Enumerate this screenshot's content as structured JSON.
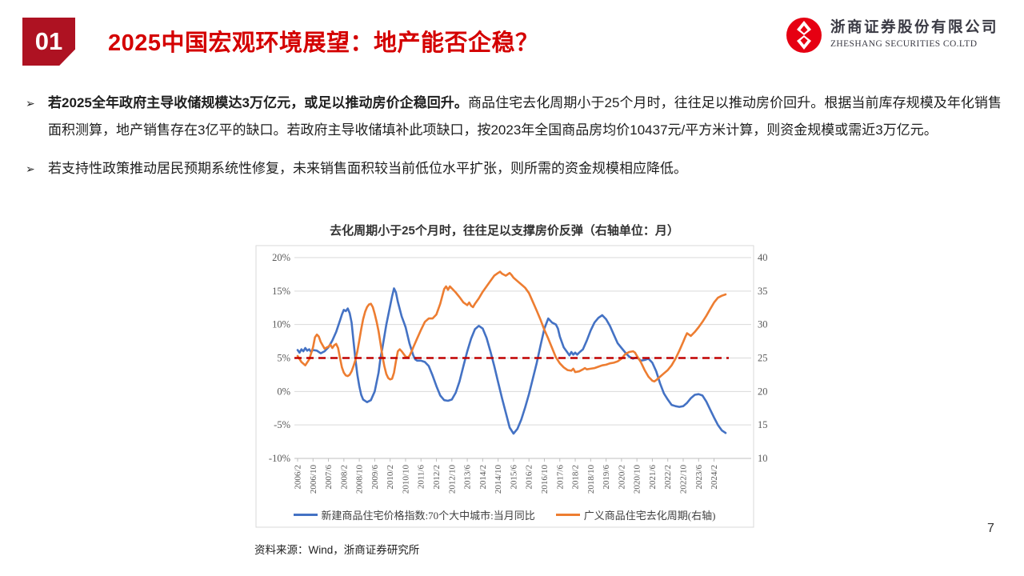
{
  "slide": {
    "section_number": "01",
    "title": "2025中国宏观环境展望：地产能否企稳？",
    "source": "资料来源：Wind，浙商证券研究所",
    "page_number": "7"
  },
  "logo": {
    "company_cn": "浙商证券股份有限公司",
    "company_en": "ZHESHANG SECURITIES CO.LTD"
  },
  "bullets": [
    {
      "marker": "➢",
      "bold": "若2025全年政府主导收储规模达3万亿元，或足以推动房价企稳回升。",
      "text": "商品住宅去化周期小于25个月时，往往足以推动房价回升。根据当前库存规模及年化销售面积测算，地产销售存在3亿平的缺口。若政府主导收储填补此项缺口，按2023年全国商品房均价10437元/平方米计算，则资金规模或需近3万亿元。"
    },
    {
      "marker": "➢",
      "bold": "",
      "text": "若支持性政策推动居民预期系统性修复，未来销售面积较当前低位水平扩张，则所需的资金规模相应降低。"
    }
  ],
  "chart_data": {
    "type": "line",
    "title": "去化周期小于25个月时，往往足以支撑房价反弹（右轴单位：月）",
    "x_unit": "months since 2006/2, labels every 8 months",
    "x_tick_labels": [
      "2006/2",
      "2006/10",
      "2007/6",
      "2008/2",
      "2008/10",
      "2009/6",
      "2010/2",
      "2010/10",
      "2011/6",
      "2012/2",
      "2012/10",
      "2013/6",
      "2014/2",
      "2014/10",
      "2015/6",
      "2016/2",
      "2016/10",
      "2017/6",
      "2018/2",
      "2018/10",
      "2019/6",
      "2020/2",
      "2020/10",
      "2021/6",
      "2022/2",
      "2022/10",
      "2023/6",
      "2024/2"
    ],
    "x_tick_interval_months": 8,
    "left_axis": {
      "ticks": [
        "20%",
        "15%",
        "10%",
        "5%",
        "0%",
        "-5%",
        "-10%"
      ],
      "max": 20,
      "min": -10
    },
    "right_axis": {
      "ticks": [
        "40",
        "35",
        "30",
        "25",
        "20",
        "15",
        "10"
      ],
      "max": 40,
      "min": 10
    },
    "grid_color": "#D9D9D9",
    "axis_color": "#BFBFBF",
    "tick_label_color": "#595959",
    "reference_line": {
      "axis": "right",
      "value": 25,
      "color": "#C00000",
      "style": "dashed"
    },
    "series": [
      {
        "name": "新建商品住宅价格指数:70个大中城市:当月同比",
        "axis": "left",
        "color": "#4472C4",
        "points": [
          [
            0,
            6.2
          ],
          [
            1,
            5.8
          ],
          [
            2,
            6.3
          ],
          [
            3,
            6.0
          ],
          [
            4,
            6.5
          ],
          [
            5,
            6.1
          ],
          [
            6,
            6.3
          ],
          [
            7,
            5.9
          ],
          [
            8,
            6.2
          ],
          [
            10,
            6.1
          ],
          [
            12,
            5.7
          ],
          [
            14,
            6.0
          ],
          [
            16,
            6.6
          ],
          [
            18,
            7.6
          ],
          [
            20,
            8.9
          ],
          [
            22,
            10.6
          ],
          [
            23,
            11.5
          ],
          [
            24,
            12.2
          ],
          [
            25,
            12.0
          ],
          [
            26,
            12.4
          ],
          [
            27,
            11.7
          ],
          [
            28,
            10.3
          ],
          [
            29,
            7.5
          ],
          [
            30,
            4.8
          ],
          [
            31,
            2.5
          ],
          [
            32,
            0.8
          ],
          [
            33,
            -0.5
          ],
          [
            34,
            -1.2
          ],
          [
            36,
            -1.6
          ],
          [
            38,
            -1.3
          ],
          [
            40,
            0.0
          ],
          [
            42,
            2.8
          ],
          [
            43,
            5.0
          ],
          [
            44,
            6.5
          ],
          [
            46,
            10.0
          ],
          [
            48,
            12.8
          ],
          [
            49,
            14.2
          ],
          [
            50,
            15.4
          ],
          [
            51,
            14.8
          ],
          [
            52,
            13.4
          ],
          [
            54,
            11.2
          ],
          [
            55,
            10.4
          ],
          [
            56,
            9.6
          ],
          [
            58,
            7.2
          ],
          [
            60,
            5.4
          ],
          [
            61,
            4.8
          ],
          [
            62,
            4.6
          ],
          [
            64,
            4.6
          ],
          [
            66,
            4.4
          ],
          [
            68,
            3.8
          ],
          [
            70,
            2.4
          ],
          [
            72,
            0.8
          ],
          [
            74,
            -0.6
          ],
          [
            76,
            -1.3
          ],
          [
            78,
            -1.4
          ],
          [
            80,
            -1.2
          ],
          [
            82,
            -0.2
          ],
          [
            84,
            1.5
          ],
          [
            86,
            3.8
          ],
          [
            88,
            6.0
          ],
          [
            90,
            7.9
          ],
          [
            92,
            9.3
          ],
          [
            94,
            9.8
          ],
          [
            96,
            9.4
          ],
          [
            98,
            8.0
          ],
          [
            100,
            6.0
          ],
          [
            102,
            3.8
          ],
          [
            104,
            1.4
          ],
          [
            106,
            -1.0
          ],
          [
            108,
            -3.2
          ],
          [
            110,
            -5.4
          ],
          [
            112,
            -6.3
          ],
          [
            114,
            -5.6
          ],
          [
            116,
            -4.2
          ],
          [
            118,
            -2.4
          ],
          [
            120,
            -0.4
          ],
          [
            122,
            1.9
          ],
          [
            124,
            4.2
          ],
          [
            126,
            6.9
          ],
          [
            128,
            9.4
          ],
          [
            130,
            10.9
          ],
          [
            131,
            10.6
          ],
          [
            132,
            10.3
          ],
          [
            134,
            10.0
          ],
          [
            135,
            9.4
          ],
          [
            136,
            8.2
          ],
          [
            138,
            6.6
          ],
          [
            140,
            5.8
          ],
          [
            141,
            5.4
          ],
          [
            142,
            5.9
          ],
          [
            143,
            5.5
          ],
          [
            144,
            5.8
          ],
          [
            145,
            5.5
          ],
          [
            146,
            5.8
          ],
          [
            148,
            6.3
          ],
          [
            150,
            7.6
          ],
          [
            152,
            9.1
          ],
          [
            154,
            10.3
          ],
          [
            156,
            11.0
          ],
          [
            158,
            11.4
          ],
          [
            160,
            10.8
          ],
          [
            162,
            9.8
          ],
          [
            164,
            8.5
          ],
          [
            166,
            7.2
          ],
          [
            168,
            6.5
          ],
          [
            170,
            5.8
          ],
          [
            172,
            5.2
          ],
          [
            174,
            4.9
          ],
          [
            176,
            5.1
          ],
          [
            178,
            4.6
          ],
          [
            180,
            4.7
          ],
          [
            182,
            4.9
          ],
          [
            184,
            4.3
          ],
          [
            186,
            3.0
          ],
          [
            188,
            1.2
          ],
          [
            190,
            -0.3
          ],
          [
            192,
            -1.2
          ],
          [
            194,
            -2.0
          ],
          [
            196,
            -2.2
          ],
          [
            198,
            -2.3
          ],
          [
            200,
            -2.2
          ],
          [
            202,
            -1.7
          ],
          [
            204,
            -1.0
          ],
          [
            206,
            -0.5
          ],
          [
            208,
            -0.4
          ],
          [
            210,
            -0.6
          ],
          [
            212,
            -1.5
          ],
          [
            214,
            -2.7
          ],
          [
            216,
            -3.9
          ],
          [
            218,
            -5.0
          ],
          [
            220,
            -5.8
          ],
          [
            222,
            -6.2
          ]
        ]
      },
      {
        "name": "广义商品住宅去化周期(右轴)",
        "axis": "right",
        "color": "#ED7D31",
        "points": [
          [
            0,
            25.3
          ],
          [
            2,
            24.4
          ],
          [
            4,
            23.9
          ],
          [
            6,
            24.8
          ],
          [
            8,
            26.6
          ],
          [
            9,
            28.1
          ],
          [
            10,
            28.5
          ],
          [
            11,
            28.2
          ],
          [
            12,
            27.4
          ],
          [
            14,
            26.4
          ],
          [
            16,
            26.7
          ],
          [
            17,
            27.0
          ],
          [
            18,
            26.5
          ],
          [
            19,
            26.9
          ],
          [
            20,
            27.1
          ],
          [
            21,
            26.5
          ],
          [
            22,
            25.0
          ],
          [
            23,
            23.6
          ],
          [
            24,
            22.8
          ],
          [
            25,
            22.4
          ],
          [
            26,
            22.3
          ],
          [
            27,
            22.5
          ],
          [
            28,
            23.0
          ],
          [
            29,
            23.8
          ],
          [
            30,
            24.7
          ],
          [
            31,
            26.0
          ],
          [
            32,
            27.6
          ],
          [
            33,
            29.3
          ],
          [
            34,
            30.8
          ],
          [
            35,
            31.9
          ],
          [
            36,
            32.6
          ],
          [
            37,
            33.0
          ],
          [
            38,
            33.1
          ],
          [
            39,
            32.6
          ],
          [
            40,
            31.6
          ],
          [
            41,
            30.4
          ],
          [
            42,
            29.0
          ],
          [
            43,
            27.2
          ],
          [
            44,
            25.3
          ],
          [
            45,
            23.8
          ],
          [
            46,
            22.6
          ],
          [
            47,
            22.0
          ],
          [
            48,
            21.8
          ],
          [
            49,
            21.9
          ],
          [
            50,
            22.8
          ],
          [
            51,
            24.5
          ],
          [
            52,
            26.0
          ],
          [
            53,
            26.3
          ],
          [
            54,
            26.0
          ],
          [
            55,
            25.6
          ],
          [
            56,
            25.2
          ],
          [
            57,
            25.1
          ],
          [
            58,
            25.3
          ],
          [
            59,
            25.9
          ],
          [
            60,
            26.6
          ],
          [
            62,
            27.9
          ],
          [
            64,
            29.2
          ],
          [
            66,
            30.4
          ],
          [
            68,
            30.9
          ],
          [
            70,
            30.9
          ],
          [
            72,
            31.5
          ],
          [
            74,
            33.1
          ],
          [
            76,
            35.3
          ],
          [
            77,
            35.7
          ],
          [
            78,
            35.2
          ],
          [
            79,
            35.7
          ],
          [
            80,
            35.4
          ],
          [
            82,
            34.8
          ],
          [
            84,
            34.1
          ],
          [
            86,
            33.3
          ],
          [
            88,
            32.9
          ],
          [
            89,
            33.3
          ],
          [
            90,
            32.8
          ],
          [
            91,
            32.6
          ],
          [
            92,
            33.1
          ],
          [
            94,
            33.9
          ],
          [
            96,
            34.9
          ],
          [
            98,
            35.7
          ],
          [
            100,
            36.5
          ],
          [
            102,
            37.3
          ],
          [
            104,
            37.7
          ],
          [
            105,
            37.9
          ],
          [
            106,
            37.6
          ],
          [
            108,
            37.3
          ],
          [
            110,
            37.7
          ],
          [
            111,
            37.4
          ],
          [
            112,
            37.0
          ],
          [
            114,
            36.5
          ],
          [
            116,
            36.0
          ],
          [
            118,
            35.5
          ],
          [
            120,
            34.7
          ],
          [
            122,
            33.4
          ],
          [
            124,
            32.1
          ],
          [
            126,
            30.7
          ],
          [
            128,
            29.2
          ],
          [
            130,
            27.9
          ],
          [
            132,
            26.5
          ],
          [
            134,
            25.1
          ],
          [
            136,
            24.2
          ],
          [
            138,
            23.6
          ],
          [
            140,
            23.2
          ],
          [
            142,
            23.1
          ],
          [
            143,
            23.4
          ],
          [
            144,
            22.9
          ],
          [
            146,
            23.0
          ],
          [
            148,
            23.3
          ],
          [
            149,
            23.5
          ],
          [
            150,
            23.3
          ],
          [
            152,
            23.4
          ],
          [
            154,
            23.5
          ],
          [
            156,
            23.7
          ],
          [
            158,
            23.9
          ],
          [
            160,
            24.0
          ],
          [
            162,
            24.2
          ],
          [
            164,
            24.3
          ],
          [
            166,
            24.5
          ],
          [
            168,
            24.9
          ],
          [
            170,
            25.6
          ],
          [
            172,
            25.9
          ],
          [
            174,
            26.0
          ],
          [
            175,
            25.8
          ],
          [
            176,
            25.3
          ],
          [
            178,
            24.4
          ],
          [
            180,
            23.2
          ],
          [
            182,
            22.2
          ],
          [
            184,
            21.6
          ],
          [
            185,
            21.5
          ],
          [
            186,
            21.7
          ],
          [
            188,
            22.2
          ],
          [
            190,
            22.7
          ],
          [
            192,
            23.2
          ],
          [
            194,
            23.9
          ],
          [
            196,
            24.9
          ],
          [
            198,
            26.1
          ],
          [
            200,
            27.4
          ],
          [
            201,
            28.1
          ],
          [
            202,
            28.7
          ],
          [
            204,
            28.3
          ],
          [
            206,
            28.9
          ],
          [
            208,
            29.6
          ],
          [
            210,
            30.4
          ],
          [
            212,
            31.3
          ],
          [
            214,
            32.3
          ],
          [
            216,
            33.3
          ],
          [
            218,
            34.0
          ],
          [
            220,
            34.3
          ],
          [
            222,
            34.5
          ]
        ]
      }
    ]
  },
  "colors": {
    "section_box": "#AE1222",
    "title_red": "#D40000",
    "series_blue": "#4472C4",
    "series_orange": "#ED7D31",
    "reference_red": "#C00000"
  }
}
